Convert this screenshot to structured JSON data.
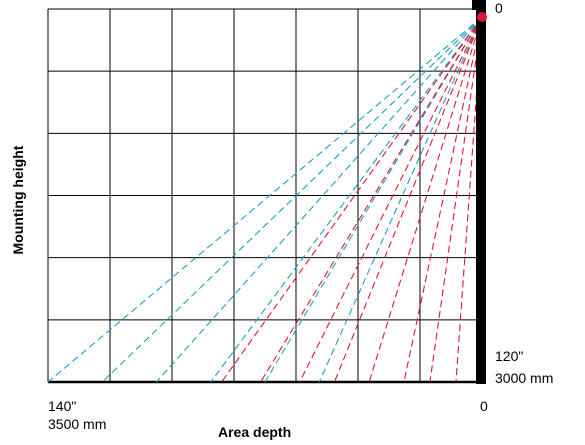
{
  "diagram": {
    "y_axis_label": "Mounting height",
    "x_axis_label": "Area depth",
    "top_right_value": "0",
    "bottom_right_depth_value": "0",
    "left_depth_inches": "140\"",
    "left_depth_mm": "3500 mm",
    "right_height_inches": "120\"",
    "right_height_mm": "3000 mm",
    "grid": {
      "columns": 7,
      "rows": 6
    },
    "colors": {
      "grid": "#000000",
      "sensor": "#000000",
      "blue_rays": "#1aa0c8",
      "red_rays": "#e0143c"
    },
    "beams": {
      "blue_end_fractions": [
        0.0,
        0.125,
        0.25,
        0.375,
        0.5,
        0.625
      ],
      "red_end_fractions": [
        0.4,
        0.49,
        0.58,
        0.66,
        0.74,
        0.82,
        0.88,
        0.94
      ]
    }
  }
}
